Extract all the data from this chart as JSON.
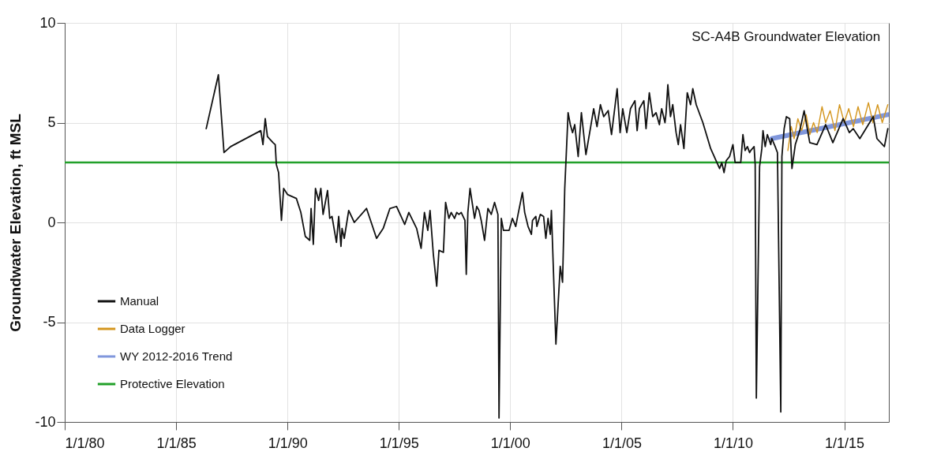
{
  "chart_data": {
    "type": "line",
    "title": "SC-A4B Groundwater Elevation",
    "ylabel": "Groundwater Elevation, ft MSL",
    "xlim": [
      "1980-01-01",
      "2017-01-01"
    ],
    "xticks": [
      {
        "value": "1980-01-01",
        "label": "1/1/80"
      },
      {
        "value": "1985-01-01",
        "label": "1/1/85"
      },
      {
        "value": "1990-01-01",
        "label": "1/1/90"
      },
      {
        "value": "1995-01-01",
        "label": "1/1/95"
      },
      {
        "value": "2000-01-01",
        "label": "1/1/00"
      },
      {
        "value": "2005-01-01",
        "label": "1/1/05"
      },
      {
        "value": "2010-01-01",
        "label": "1/1/10"
      },
      {
        "value": "2015-01-01",
        "label": "1/1/15"
      }
    ],
    "ylim": [
      -10,
      10
    ],
    "yticks": [
      -10,
      -5,
      0,
      5,
      10
    ],
    "grid": true,
    "legend": "bottom left",
    "ref_lines": [
      {
        "axis": "y",
        "value": 3.0,
        "label": "Protective Elevation",
        "color": "#22a02a"
      }
    ],
    "series": [
      {
        "name": "Manual",
        "color": "#111111",
        "x": [
          "1986-05-09",
          "1986-11-25",
          "1987-02-25",
          "1987-06-14",
          "1988-10-20",
          "1988-11-25",
          "1989-01-01",
          "1989-02-06",
          "1989-05-09",
          "1989-06-14",
          "1989-07-02",
          "1989-08-08",
          "1989-09-24",
          "1989-10-30",
          "1990-01-01",
          "1990-05-27",
          "1990-08-08",
          "1990-10-20",
          "1991-01-01",
          "1991-01-23",
          "1991-03-01",
          "1991-04-05",
          "1991-05-27",
          "1991-07-02",
          "1991-08-08",
          "1991-10-20",
          "1991-11-25",
          "1992-01-01",
          "1992-03-14",
          "1992-04-20",
          "1992-05-27",
          "1992-06-14",
          "1992-07-20",
          "1992-10-01",
          "1993-01-01",
          "1993-07-20",
          "1994-01-01",
          "1994-04-20",
          "1994-08-08",
          "1994-11-25",
          "1995-04-08",
          "1995-06-14",
          "1995-10-20",
          "1996-01-01",
          "1996-02-25",
          "1996-04-20",
          "1996-05-27",
          "1996-07-20",
          "1996-09-13",
          "1996-10-20",
          "1997-01-01",
          "1997-02-06",
          "1997-04-01",
          "1997-05-09",
          "1997-07-02",
          "1997-08-08",
          "1997-09-13",
          "1997-10-20",
          "1997-12-20",
          "1998-01-11",
          "1998-02-06",
          "1998-03-14",
          "1998-05-27",
          "1998-07-02",
          "1998-08-08",
          "1998-09-13",
          "1998-11-07",
          "1999-01-01",
          "1999-02-25",
          "1999-04-20",
          "1999-06-14",
          "1999-07-02",
          "1999-08-08",
          "1999-09-13",
          "1999-12-14",
          "2000-02-06",
          "2000-04-01",
          "2000-05-09",
          "2000-07-20",
          "2000-08-26",
          "2000-10-20",
          "2000-12-14",
          "2001-01-01",
          "2001-02-25",
          "2001-03-14",
          "2001-05-09",
          "2001-07-02",
          "2001-08-08",
          "2001-09-13",
          "2001-10-20",
          "2001-11-07",
          "2002-01-20",
          "2002-04-01",
          "2002-05-09",
          "2002-06-14",
          "2002-08-08",
          "2002-09-13",
          "2002-10-20",
          "2002-11-25",
          "2003-01-20",
          "2003-03-14",
          "2003-05-27",
          "2003-08-08",
          "2003-10-01",
          "2003-11-25",
          "2004-01-20",
          "2004-03-14",
          "2004-05-27",
          "2004-07-20",
          "2004-10-20",
          "2004-12-08",
          "2005-01-20",
          "2005-03-28",
          "2005-05-27",
          "2005-08-08",
          "2005-09-13",
          "2005-10-20",
          "2006-01-01",
          "2006-02-06",
          "2006-04-01",
          "2006-05-27",
          "2006-07-20",
          "2006-09-13",
          "2006-10-20",
          "2006-12-14",
          "2007-01-01",
          "2007-01-30",
          "2007-03-14",
          "2007-04-20",
          "2007-06-14",
          "2007-07-20",
          "2007-08-26",
          "2007-10-20",
          "2007-12-14",
          "2008-02-06",
          "2008-03-14",
          "2008-05-09",
          "2008-08-26",
          "2009-01-01",
          "2009-05-27",
          "2009-07-02",
          "2009-08-08",
          "2009-09-13",
          "2009-11-07",
          "2010-01-01",
          "2010-02-06",
          "2010-04-01",
          "2010-05-09",
          "2010-06-14",
          "2010-07-20",
          "2010-08-26",
          "2010-10-01",
          "2010-10-20",
          "2010-12-14",
          "2011-01-01",
          "2011-01-20",
          "2011-03-14",
          "2011-04-20",
          "2011-05-09",
          "2011-06-14",
          "2011-07-20",
          "2011-09-13",
          "2011-10-01",
          "2011-11-25",
          "2012-01-01",
          "2012-02-25",
          "2012-03-14",
          "2012-04-20",
          "2012-05-27",
          "2012-07-20",
          "2012-08-26",
          "2012-10-20",
          "2013-01-01",
          "2013-03-14",
          "2013-06-14",
          "2013-10-10",
          "2014-03-01",
          "2014-06-28",
          "2014-12-14",
          "2015-03-25",
          "2015-05-27",
          "2015-09-13",
          "2016-04-20",
          "2016-06-20",
          "2016-10-20",
          "2016-12-15"
        ],
        "values": [
          4.7,
          7.4,
          3.5,
          3.8,
          4.6,
          3.9,
          5.2,
          4.3,
          4.0,
          3.9,
          2.9,
          2.5,
          0.1,
          1.7,
          1.4,
          1.2,
          0.5,
          -0.7,
          -0.9,
          0.7,
          -1.1,
          1.7,
          1.1,
          1.7,
          0.4,
          1.6,
          0.2,
          0.3,
          -1.0,
          0.3,
          -1.2,
          -0.3,
          -0.8,
          0.6,
          0.0,
          0.7,
          -0.8,
          -0.3,
          0.7,
          0.8,
          -0.1,
          0.5,
          -0.3,
          -1.3,
          0.5,
          -0.4,
          0.6,
          -1.6,
          -3.2,
          -1.4,
          -1.5,
          1.0,
          0.2,
          0.5,
          0.2,
          0.5,
          0.4,
          0.5,
          0.1,
          -2.6,
          0.5,
          1.7,
          0.2,
          0.8,
          0.6,
          0.1,
          -0.9,
          0.7,
          0.4,
          1.0,
          0.4,
          -9.8,
          0.2,
          -0.4,
          -0.4,
          0.2,
          -0.2,
          0.4,
          1.5,
          0.5,
          -0.2,
          -0.6,
          0.1,
          0.3,
          -0.2,
          0.4,
          0.3,
          -0.8,
          0.2,
          -0.6,
          0.6,
          -6.1,
          -2.2,
          -3.0,
          1.7,
          5.5,
          4.9,
          4.5,
          4.9,
          3.3,
          5.5,
          3.4,
          4.7,
          5.7,
          4.8,
          5.9,
          5.3,
          5.6,
          4.4,
          6.7,
          4.5,
          5.7,
          4.5,
          5.7,
          6.1,
          4.6,
          5.7,
          6.1,
          4.7,
          6.5,
          5.3,
          5.5,
          4.9,
          5.7,
          5.0,
          5.5,
          6.9,
          5.3,
          5.9,
          4.5,
          3.9,
          4.9,
          3.7,
          6.5,
          5.9,
          6.7,
          5.9,
          5.0,
          3.7,
          2.7,
          3.0,
          2.5,
          3.1,
          3.3,
          3.9,
          3.0,
          3.0,
          3.0,
          4.4,
          3.6,
          3.8,
          3.5,
          3.6,
          3.8,
          2.9,
          -8.8,
          2.8,
          3.7,
          4.6,
          3.8,
          4.4,
          3.9,
          4.2,
          3.8,
          3.5,
          -9.5,
          3.3,
          4.7,
          5.3,
          5.2,
          2.7,
          3.9,
          4.6,
          5.6,
          4.0,
          3.9,
          4.9,
          4.0,
          5.2,
          4.5,
          4.7,
          4.2,
          5.3,
          4.2,
          3.8,
          4.7
        ]
      },
      {
        "name": "Data Logger",
        "color": "#d4961e",
        "x": [
          "2012-06-20",
          "2012-08-15",
          "2012-10-01",
          "2012-12-01",
          "2013-02-01",
          "2013-04-15",
          "2013-06-15",
          "2013-08-15",
          "2013-10-15",
          "2014-01-01",
          "2014-03-01",
          "2014-05-15",
          "2014-08-01",
          "2014-10-15",
          "2015-01-01",
          "2015-03-15",
          "2015-06-01",
          "2015-08-15",
          "2015-11-01",
          "2016-02-01",
          "2016-04-15",
          "2016-07-01",
          "2016-09-15",
          "2016-12-15"
        ],
        "values": [
          3.6,
          4.8,
          4.2,
          5.2,
          4.6,
          5.4,
          4.4,
          5.0,
          4.5,
          5.8,
          5.0,
          5.6,
          4.6,
          5.9,
          5.0,
          5.7,
          4.8,
          5.8,
          4.9,
          6.0,
          5.0,
          5.9,
          5.0,
          5.9
        ]
      },
      {
        "name": "WY 2012-2016 Trend",
        "color": "#8097dc",
        "x": [
          "2011-10-01",
          "2016-12-15"
        ],
        "values": [
          4.2,
          5.4
        ]
      }
    ]
  }
}
